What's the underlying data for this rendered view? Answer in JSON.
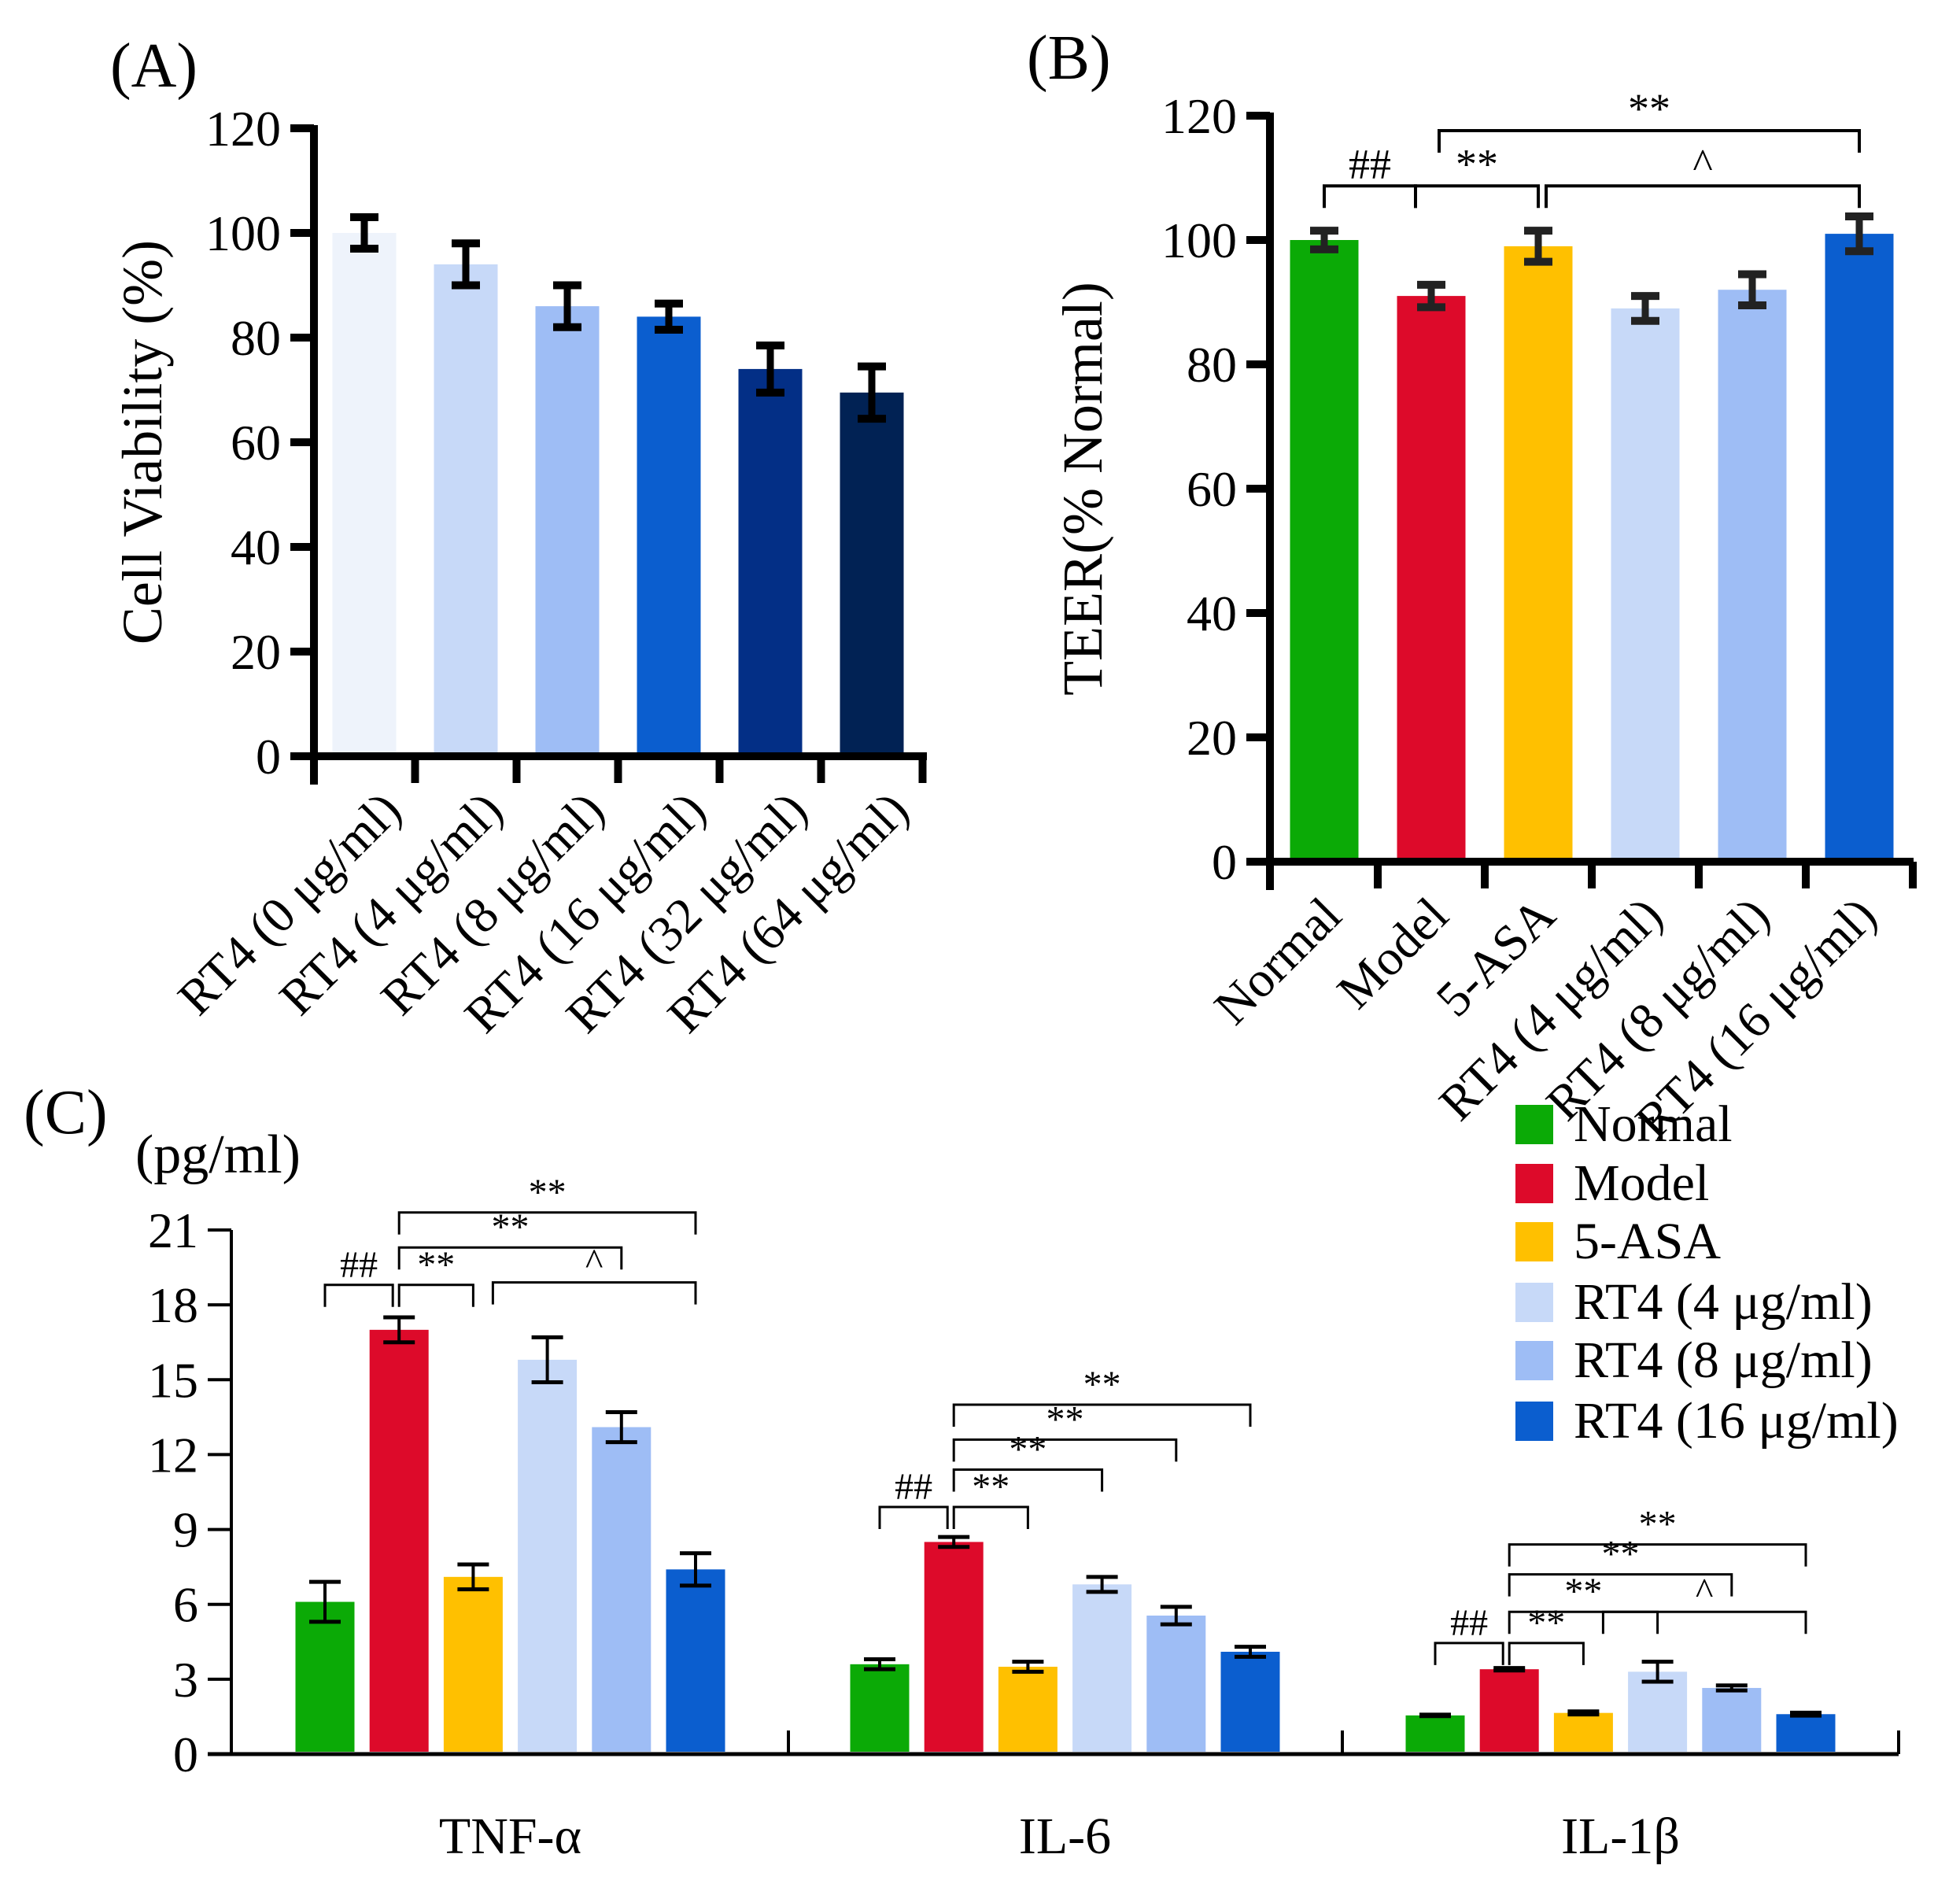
{
  "chart_data": [
    {
      "panel_label": "(A)",
      "type": "bar",
      "ylabel": "Cell Viability (%)",
      "ylim": [
        0,
        120
      ],
      "yticks": [
        "0",
        "20",
        "40",
        "60",
        "80",
        "100",
        "120"
      ],
      "categories": [
        "RT4 (0 μg/ml)",
        "RT4 (4 μg/ml)",
        "RT4 (8 μg/ml)",
        "RT4 (16 μg/ml)",
        "RT4 (32 μg/ml)",
        "RT4 (64 μg/ml)"
      ],
      "values": [
        100,
        94,
        86,
        84,
        74,
        69.5
      ],
      "errors": [
        3,
        4,
        4,
        2.5,
        4.5,
        5
      ],
      "colors": [
        "#EEF3FB",
        "#C7D9F8",
        "#9EBDF5",
        "#0B5ECF",
        "#032F86",
        "#012254"
      ],
      "annotations": []
    },
    {
      "panel_label": "(B)",
      "type": "bar",
      "ylabel": "TEER(% Normal)",
      "ylim": [
        0,
        120
      ],
      "yticks": [
        "0",
        "20",
        "40",
        "60",
        "80",
        "100",
        "120"
      ],
      "categories": [
        "Normal",
        "Model",
        "5-ASA",
        "RT4 (4 μg/ml)",
        "RT4 (8 μg/ml)",
        "RT4 (16 μg/ml)"
      ],
      "values": [
        100,
        91,
        99,
        89,
        92,
        101
      ],
      "errors": [
        1.5,
        1.8,
        2.5,
        2,
        2.5,
        2.8
      ],
      "colors": [
        "#0BAA06",
        "#DD0A2A",
        "#FFC000",
        "#C7D9F8",
        "#9EBDF5",
        "#0B5ECF"
      ],
      "annotations": [
        {
          "from": 0,
          "to": 1,
          "level": 108.7,
          "label": "##"
        },
        {
          "from": 1,
          "to": 2,
          "level": 108.7,
          "label": "**"
        },
        {
          "from": 2,
          "to": 5,
          "level": 108.7,
          "label": "^"
        },
        {
          "from": 1,
          "to": 5,
          "level": 117.6,
          "label": "**"
        }
      ]
    },
    {
      "panel_label": "(C)",
      "type": "bar",
      "ylabel": "(pg/ml)",
      "ylim": [
        0,
        21
      ],
      "yticks": [
        "0",
        "3",
        "6",
        "9",
        "12",
        "15",
        "18",
        "21"
      ],
      "categories": [
        "TNF-α",
        "IL-6",
        "IL-1β"
      ],
      "series": [
        {
          "name": "Normal",
          "color": "#0BAA06",
          "values": [
            6.1,
            3.6,
            1.55
          ],
          "errors": [
            0.8,
            0.2,
            0.03
          ]
        },
        {
          "name": "Model",
          "color": "#DD0A2A",
          "values": [
            17.0,
            8.5,
            3.4
          ],
          "errors": [
            0.5,
            0.2,
            0.05
          ]
        },
        {
          "name": "5-ASA",
          "color": "#FFC000",
          "values": [
            7.1,
            3.5,
            1.65
          ],
          "errors": [
            0.5,
            0.2,
            0.06
          ]
        },
        {
          "name": "RT4 (4 μg/ml)",
          "color": "#C7D9F8",
          "values": [
            15.8,
            6.8,
            3.3
          ],
          "errors": [
            0.9,
            0.3,
            0.4
          ]
        },
        {
          "name": "RT4 (8 μg/ml)",
          "color": "#9EBDF5",
          "values": [
            13.1,
            5.55,
            2.65
          ],
          "errors": [
            0.6,
            0.35,
            0.1
          ]
        },
        {
          "name": "RT4 (16 μg/ml)",
          "color": "#0B5ECF",
          "values": [
            7.4,
            4.1,
            1.6
          ],
          "errors": [
            0.65,
            0.2,
            0.06
          ]
        }
      ],
      "legend_position": "top-right",
      "annotations": [
        {
          "group": 0,
          "from": 0,
          "to": 1,
          "level": 18.8,
          "label": "##"
        },
        {
          "group": 0,
          "from": 1,
          "to": 2,
          "level": 18.8,
          "label": "**"
        },
        {
          "group": 0,
          "from": 2,
          "to": 5,
          "level": 18.9,
          "label": "^"
        },
        {
          "group": 0,
          "from": 1,
          "to": 4,
          "level": 20.3,
          "label": "**"
        },
        {
          "group": 0,
          "from": 1,
          "to": 5,
          "level": 21.7,
          "label": "**"
        },
        {
          "group": 1,
          "from": 0,
          "to": 1,
          "level": 9.9,
          "label": "##"
        },
        {
          "group": 1,
          "from": 1,
          "to": 2,
          "level": 9.9,
          "label": "**"
        },
        {
          "group": 1,
          "from": 1,
          "to": 3,
          "level": 11.4,
          "label": "**"
        },
        {
          "group": 1,
          "from": 1,
          "to": 4,
          "level": 12.6,
          "label": "**"
        },
        {
          "group": 1,
          "from": 1,
          "to": 5,
          "level": 14.0,
          "label": "**"
        },
        {
          "group": 2,
          "from": 0,
          "to": 1,
          "level": 4.45,
          "label": "##"
        },
        {
          "group": 2,
          "from": 1,
          "to": 2,
          "level": 4.45,
          "label": "**"
        },
        {
          "group": 2,
          "from": 1,
          "to": 3,
          "level": 5.7,
          "label": "**"
        },
        {
          "group": 2,
          "from": 2,
          "to": 5,
          "level": 5.7,
          "label": "^"
        },
        {
          "group": 2,
          "from": 1,
          "to": 4,
          "level": 7.2,
          "label": "**"
        },
        {
          "group": 2,
          "from": 1,
          "to": 5,
          "level": 8.4,
          "label": "**"
        }
      ]
    }
  ]
}
